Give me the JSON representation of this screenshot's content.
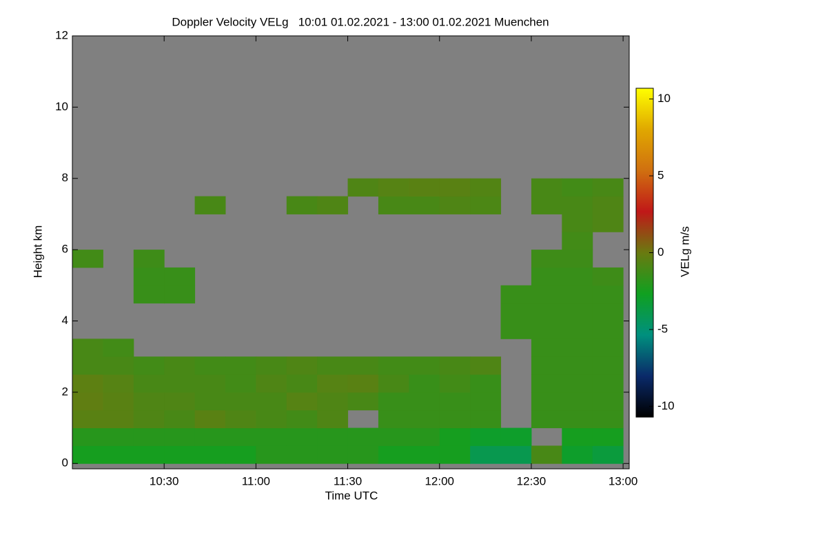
{
  "chart_data": {
    "type": "heatmap",
    "title": "Doppler Velocity VELg   10:01 01.02.2021 - 13:00 01.02.2021 Muenchen",
    "xlabel": "Time UTC",
    "ylabel": "Height km",
    "colorbar_label": "VELg m/s",
    "xlim": [
      600,
      782
    ],
    "ylim": [
      -0.15,
      12
    ],
    "xticks": [
      {
        "value": 630,
        "label": "10:30"
      },
      {
        "value": 660,
        "label": "11:00"
      },
      {
        "value": 690,
        "label": "11:30"
      },
      {
        "value": 720,
        "label": "12:00"
      },
      {
        "value": 750,
        "label": "12:30"
      },
      {
        "value": 780,
        "label": "13:00"
      }
    ],
    "yticks": [
      0,
      2,
      4,
      6,
      8,
      10,
      12
    ],
    "zlim": [
      -10.7,
      10.7
    ],
    "zticks": [
      -10,
      -5,
      0,
      5,
      10
    ],
    "colormap": [
      "#000000",
      "#0a2a6a",
      "#00907e",
      "#10a020",
      "#6a7a10",
      "#c01818",
      "#d07010",
      "#e0a800",
      "#ffff00"
    ],
    "nodata_color": "#808080",
    "x_edges": [
      600,
      610,
      620,
      630,
      640,
      650,
      660,
      670,
      680,
      690,
      700,
      710,
      720,
      730,
      740,
      750,
      760,
      770,
      780
    ],
    "y_edges": [
      0,
      0.5,
      1,
      1.5,
      2,
      2.5,
      3,
      3.5,
      4,
      4.5,
      5,
      5.5,
      6,
      6.5,
      7,
      7.5,
      8
    ],
    "z": [
      [
        -2.5,
        -2.5,
        -2.5,
        -2.5,
        -2.5,
        -2.5,
        -2,
        -2,
        -2,
        -2,
        -2.5,
        -2.5,
        -2.5,
        -4,
        -4,
        -1,
        -3,
        -3.5
      ],
      [
        -2,
        -2,
        -2,
        -2,
        -2,
        -2,
        -2,
        -2,
        -2,
        -2,
        -2,
        -2,
        -2.5,
        -3,
        -3,
        null,
        -2.5,
        -2.5
      ],
      [
        -0.5,
        -0.5,
        -0.8,
        -1,
        -0.5,
        -0.8,
        -1,
        -1.2,
        -0.8,
        null,
        -1.5,
        -1.5,
        -1.5,
        -1.5,
        null,
        -1.5,
        -1.5,
        -1.5
      ],
      [
        -0.3,
        -0.5,
        -0.8,
        -0.8,
        -1,
        -1,
        -1,
        -0.6,
        -0.8,
        -1,
        -1.5,
        -1.5,
        -1.5,
        -1.5,
        null,
        -1.5,
        -1.5,
        -1.5
      ],
      [
        -0.4,
        -0.6,
        -1,
        -1,
        -1,
        -1.2,
        -0.8,
        -1,
        -0.6,
        -0.5,
        -1,
        -1.5,
        -1.2,
        -1.5,
        null,
        -1.5,
        -1.5,
        -1.5
      ],
      [
        -1,
        -1,
        -1.2,
        -1,
        -1.2,
        -1.2,
        -1,
        -0.8,
        -1,
        -1,
        -1.2,
        -1.2,
        -1,
        -0.8,
        null,
        -1.5,
        -1.5,
        -1.5
      ],
      [
        -1,
        -1.2,
        null,
        null,
        null,
        null,
        null,
        null,
        null,
        null,
        null,
        null,
        null,
        null,
        null,
        -1.5,
        -1.5,
        -1.5
      ],
      [
        null,
        null,
        null,
        null,
        null,
        null,
        null,
        null,
        null,
        null,
        null,
        null,
        null,
        null,
        -1.5,
        -1.5,
        -1.5,
        -1.5
      ],
      [
        null,
        null,
        null,
        null,
        null,
        null,
        null,
        null,
        null,
        null,
        null,
        null,
        null,
        null,
        -1.5,
        -1.5,
        -1.5,
        -1.5
      ],
      [
        null,
        null,
        -1.5,
        -1.5,
        null,
        null,
        null,
        null,
        null,
        null,
        null,
        null,
        null,
        null,
        -1.5,
        -1.5,
        -1.5,
        -1.5
      ],
      [
        null,
        null,
        -1.5,
        -1.5,
        null,
        null,
        null,
        null,
        null,
        null,
        null,
        null,
        null,
        null,
        null,
        -1.5,
        -1.5,
        -1.3
      ],
      [
        -1.2,
        null,
        -1.3,
        null,
        null,
        null,
        null,
        null,
        null,
        null,
        null,
        null,
        null,
        null,
        null,
        -1.3,
        -1.3,
        null
      ],
      [
        null,
        null,
        null,
        null,
        null,
        null,
        null,
        null,
        null,
        null,
        null,
        null,
        null,
        null,
        null,
        null,
        -1.2,
        null
      ],
      [
        null,
        null,
        null,
        null,
        null,
        null,
        null,
        null,
        null,
        null,
        null,
        null,
        null,
        null,
        null,
        null,
        -1,
        -0.8
      ],
      [
        null,
        null,
        null,
        null,
        -1,
        null,
        null,
        -1,
        -0.8,
        null,
        -1,
        -1,
        -0.8,
        -0.9,
        null,
        -1,
        -1,
        -0.8
      ],
      [
        null,
        null,
        null,
        null,
        null,
        null,
        null,
        null,
        null,
        -0.8,
        -0.6,
        -0.5,
        -0.5,
        -0.7,
        null,
        -1,
        -1.2,
        -1
      ]
    ]
  }
}
